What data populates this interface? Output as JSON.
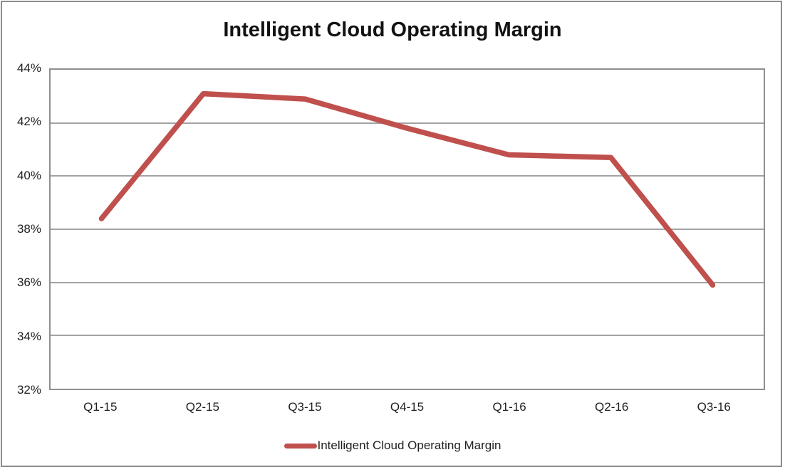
{
  "title": "Intelligent Cloud Operating Margin",
  "colors": {
    "line": "#C0504D",
    "grid": "#A3A3A3",
    "plot_border": "#8F8F8F",
    "outer_border": "#8C8C8C",
    "text": "#1F1F1F",
    "title_text": "#121212"
  },
  "legend": {
    "label": "Intelligent Cloud Operating Margin",
    "position": "bottom"
  },
  "chart_data": {
    "type": "line",
    "title": "Intelligent Cloud Operating Margin",
    "categories": [
      "Q1-15",
      "Q2-15",
      "Q3-15",
      "Q4-15",
      "Q1-16",
      "Q2-16",
      "Q3-16"
    ],
    "series": [
      {
        "name": "Intelligent Cloud Operating Margin",
        "values": [
          38.4,
          43.1,
          42.9,
          41.8,
          40.8,
          40.7,
          35.9
        ]
      }
    ],
    "xlabel": "",
    "ylabel": "",
    "ylim": [
      32,
      44
    ],
    "ytick_step": 2,
    "ytick_labels": [
      "44%",
      "42%",
      "40%",
      "38%",
      "36%",
      "34%",
      "32%"
    ],
    "grid": true,
    "legend_position": "bottom",
    "line_width": 7.5
  }
}
